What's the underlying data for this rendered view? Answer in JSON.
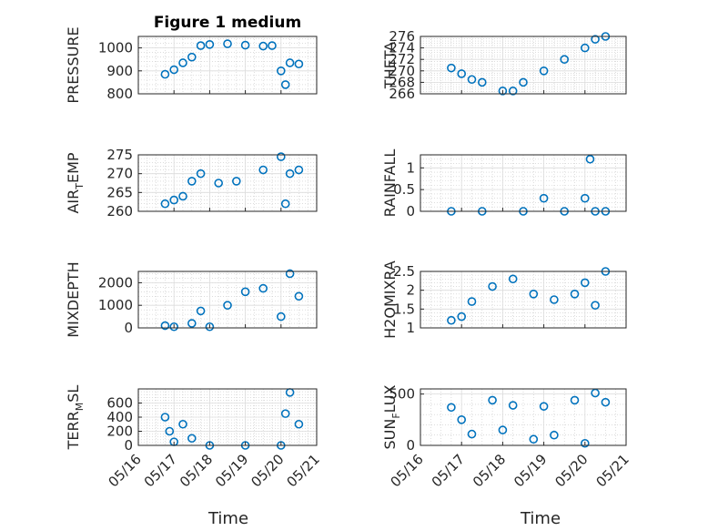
{
  "figure": {
    "title": "Figure 1 medium",
    "xlabel": "Time",
    "date_ticks": [
      "05/16",
      "05/17",
      "05/18",
      "05/19",
      "05/20",
      "05/21"
    ],
    "marker_color": "#0072bd"
  },
  "chart_data": [
    {
      "type": "scatter",
      "ylabel": "PRESSURE",
      "ylim": [
        800,
        1050
      ],
      "yticks": [
        800,
        900,
        1000
      ],
      "ytick_labels": [
        "800",
        "900",
        "1000"
      ],
      "x": [
        "05/16 18:00",
        "05/17 00:00",
        "05/17 06:00",
        "05/17 12:00",
        "05/17 18:00",
        "05/18 00:00",
        "05/18 12:00",
        "05/19 00:00",
        "05/19 12:00",
        "05/19 18:00",
        "05/20 00:00",
        "05/20 03:00",
        "05/20 06:00",
        "05/20 12:00"
      ],
      "y": [
        885,
        905,
        935,
        960,
        1010,
        1015,
        1018,
        1012,
        1008,
        1010,
        900,
        840,
        935,
        930
      ]
    },
    {
      "type": "scatter",
      "ylabel": "THETA",
      "ylim": [
        266,
        276
      ],
      "yticks": [
        266,
        268,
        270,
        272,
        274,
        276
      ],
      "ytick_labels": [
        "266",
        "268",
        "270",
        "272",
        "274",
        "276"
      ],
      "x": [
        "05/16 18:00",
        "05/17 00:00",
        "05/17 06:00",
        "05/17 12:00",
        "05/18 00:00",
        "05/18 06:00",
        "05/18 12:00",
        "05/19 00:00",
        "05/19 12:00",
        "05/20 00:00",
        "05/20 06:00",
        "05/20 12:00"
      ],
      "y": [
        270.5,
        269.5,
        268.5,
        268.0,
        266.5,
        266.5,
        268.0,
        270.0,
        272.0,
        274.0,
        275.5,
        276.0
      ]
    },
    {
      "type": "scatter",
      "ylabel": "AIR",
      "ylabel_sub": "T",
      "ylabel_rest": "EMP",
      "ylim": [
        260,
        275
      ],
      "yticks": [
        260,
        265,
        270,
        275
      ],
      "ytick_labels": [
        "260",
        "265",
        "270",
        "275"
      ],
      "x": [
        "05/16 18:00",
        "05/17 00:00",
        "05/17 06:00",
        "05/17 12:00",
        "05/17 18:00",
        "05/18 06:00",
        "05/18 18:00",
        "05/19 12:00",
        "05/20 00:00",
        "05/20 03:00",
        "05/20 06:00",
        "05/20 12:00"
      ],
      "y": [
        262,
        263,
        264,
        268,
        270,
        267.5,
        268,
        271,
        274.5,
        262,
        270,
        271
      ]
    },
    {
      "type": "scatter",
      "ylabel": "RAINFALL",
      "ylim": [
        0,
        1.3
      ],
      "yticks": [
        0,
        0.5,
        1
      ],
      "ytick_labels": [
        "0",
        "0.5",
        "1"
      ],
      "x": [
        "05/16 18:00",
        "05/17 12:00",
        "05/18 12:00",
        "05/19 00:00",
        "05/19 12:00",
        "05/20 00:00",
        "05/20 03:00",
        "05/20 06:00",
        "05/20 12:00"
      ],
      "y": [
        0,
        0,
        0,
        0.3,
        0,
        0.3,
        1.2,
        0,
        0
      ]
    },
    {
      "type": "scatter",
      "ylabel": "MIXDEPTH",
      "ylim": [
        0,
        2500
      ],
      "yticks": [
        0,
        1000,
        2000
      ],
      "ytick_labels": [
        "0",
        "1000",
        "2000"
      ],
      "x": [
        "05/16 18:00",
        "05/17 00:00",
        "05/17 12:00",
        "05/17 18:00",
        "05/18 00:00",
        "05/18 12:00",
        "05/19 00:00",
        "05/19 12:00",
        "05/20 00:00",
        "05/20 06:00",
        "05/20 12:00"
      ],
      "y": [
        100,
        50,
        200,
        750,
        50,
        1000,
        1600,
        1750,
        500,
        2400,
        1400
      ]
    },
    {
      "type": "scatter",
      "ylabel": "H2OMIXRA",
      "ylim": [
        1,
        2.5
      ],
      "yticks": [
        1,
        1.5,
        2,
        2.5
      ],
      "ytick_labels": [
        "1",
        "1.5",
        "2",
        "2.5"
      ],
      "x": [
        "05/16 18:00",
        "05/17 00:00",
        "05/17 06:00",
        "05/17 18:00",
        "05/18 06:00",
        "05/18 18:00",
        "05/19 06:00",
        "05/19 18:00",
        "05/20 00:00",
        "05/20 06:00",
        "05/20 12:00"
      ],
      "y": [
        1.2,
        1.3,
        1.7,
        2.1,
        2.3,
        1.9,
        1.75,
        1.9,
        2.2,
        1.6,
        2.5
      ]
    },
    {
      "type": "scatter",
      "ylabel": "TERR",
      "ylabel_sub": "M",
      "ylabel_rest": "SL",
      "ylim": [
        0,
        800
      ],
      "yticks": [
        0,
        200,
        400,
        600
      ],
      "ytick_labels": [
        "0",
        "200",
        "400",
        "600"
      ],
      "x": [
        "05/16 18:00",
        "05/16 21:00",
        "05/17 00:00",
        "05/17 06:00",
        "05/17 12:00",
        "05/18 00:00",
        "05/19 00:00",
        "05/20 00:00",
        "05/20 03:00",
        "05/20 06:00",
        "05/20 12:00"
      ],
      "y": [
        400,
        200,
        50,
        300,
        100,
        0,
        0,
        0,
        450,
        750,
        300
      ]
    },
    {
      "type": "scatter",
      "ylabel": "SUN",
      "ylabel_sub": "F",
      "ylabel_rest": "LUX",
      "ylim": [
        0,
        550
      ],
      "yticks": [
        0,
        500
      ],
      "ytick_labels": [
        "0",
        "500"
      ],
      "x": [
        "05/16 18:00",
        "05/17 00:00",
        "05/17 06:00",
        "05/17 18:00",
        "05/18 00:00",
        "05/18 06:00",
        "05/18 18:00",
        "05/19 00:00",
        "05/19 06:00",
        "05/19 18:00",
        "05/20 00:00",
        "05/20 06:00",
        "05/20 12:00"
      ],
      "y": [
        370,
        250,
        110,
        440,
        150,
        390,
        60,
        380,
        100,
        440,
        20,
        510,
        420
      ]
    }
  ]
}
